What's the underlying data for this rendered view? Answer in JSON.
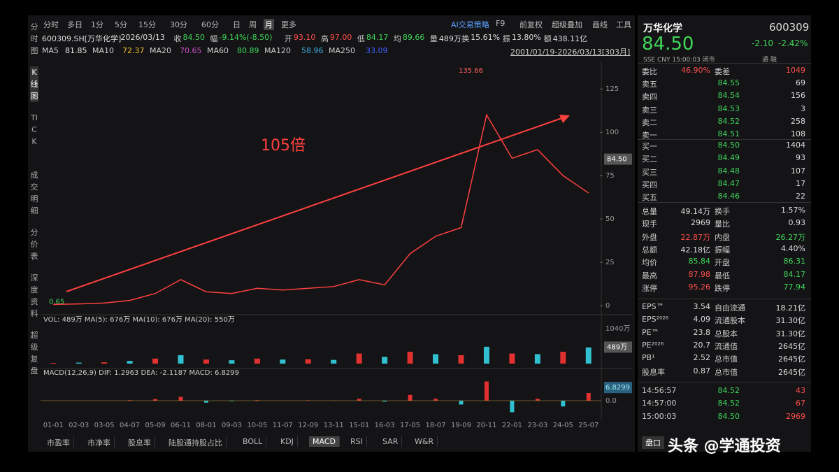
{
  "toolbar": {
    "periods": [
      "分时",
      "多日",
      "1分",
      "5分",
      "15分",
      "30分",
      "60分",
      "日",
      "周",
      "月",
      "更多"
    ],
    "active": "月",
    "tools": [
      "AI交易策略",
      "F9",
      "前复权",
      "超级叠加",
      "画线",
      "工具"
    ]
  },
  "left_tabs": [
    "分时图",
    "K线图",
    "TICK",
    "成交明细",
    "分价表",
    "深度资料",
    "超级复盘"
  ],
  "info_line": [
    {
      "label": "600309.SH[万华化学]",
      "color": "#ddd"
    },
    {
      "label": "2026/03/13",
      "color": "#ddd"
    },
    {
      "label": "收",
      "value": "84.50",
      "color": "#3fd65a"
    },
    {
      "label": "幅",
      "value": "-9.14%(-8.50)",
      "color": "#3fd65a"
    },
    {
      "label": "开",
      "value": "93.10",
      "color": "#ff4d4d"
    },
    {
      "label": "高",
      "value": "97.00",
      "color": "#ff4d4d"
    },
    {
      "label": "低",
      "value": "84.17",
      "color": "#3fd65a"
    },
    {
      "label": "均",
      "value": "89.66",
      "color": "#3fd65a"
    },
    {
      "label": "量",
      "value": "489万",
      "color": "#ddd"
    },
    {
      "label": "换",
      "value": "15.61%",
      "color": "#ddd"
    },
    {
      "label": "振",
      "value": "13.80%",
      "color": "#ddd"
    },
    {
      "label": "额",
      "value": "438.11亿",
      "color": "#ddd"
    }
  ],
  "ma_line": [
    {
      "label": "MA5",
      "value": "81.85",
      "color": "#e8e8e8"
    },
    {
      "label": "MA10",
      "value": "72.37",
      "color": "#f0c030"
    },
    {
      "label": "MA20",
      "value": "70.65",
      "color": "#d050d0"
    },
    {
      "label": "MA60",
      "value": "80.89",
      "color": "#3fd65a"
    },
    {
      "label": "MA120",
      "value": "58.96",
      "color": "#3fb0e0"
    },
    {
      "label": "MA250",
      "value": "33.09",
      "color": "#4060ff"
    }
  ],
  "range_label": "2001/01/19-2026/03/13[303月]",
  "chart_data": {
    "type": "line",
    "color": "#ff4040",
    "categories": [
      "01-01",
      "02-03",
      "03-05",
      "04-07",
      "05-09",
      "06-11",
      "08-01",
      "09-03",
      "10-05",
      "11-07",
      "12-09",
      "13-11",
      "15-01",
      "16-03",
      "17-05",
      "18-07",
      "19-09",
      "20-11",
      "22-01",
      "23-03",
      "24-05",
      "25-07"
    ],
    "values": [
      0.7,
      1,
      1.5,
      3,
      7,
      15,
      8,
      7,
      10,
      9,
      10,
      11,
      15,
      12,
      30,
      40,
      45,
      110,
      85,
      90,
      75,
      65
    ],
    "ylim": [
      -4,
      140
    ],
    "yticks": [
      0,
      25,
      50,
      75,
      100,
      125
    ],
    "high": 135.66,
    "low": 0.65,
    "last": {
      "value": 84.5,
      "label": "84.50"
    },
    "annotation": "105倍",
    "volume": {
      "legend": "VOL: 489万 MA(5): 676万 MA(10): 676万 MA(20): 550万",
      "values": [
        20,
        30,
        40,
        80,
        150,
        250,
        120,
        100,
        150,
        120,
        130,
        110,
        300,
        200,
        350,
        280,
        250,
        500,
        300,
        280,
        350,
        480
      ],
      "ylim": [
        0,
        1140
      ],
      "yticks": [
        {
          "value": 1040,
          "label": "1040万"
        }
      ],
      "current": {
        "value": 489,
        "label": "489万"
      }
    },
    "macd": {
      "legend": "MACD(12,26,9) DIF: 1.2963 DEA: -2.1187 MACD: 6.8299",
      "values": [
        0,
        0,
        0.1,
        0.3,
        0.8,
        2,
        -1,
        -0.3,
        0.3,
        0,
        0.2,
        0.1,
        1,
        -0.5,
        3,
        1,
        -2,
        10,
        -6,
        1,
        -3,
        4
      ],
      "ylim": [
        -8,
        12
      ],
      "yticks": [
        {
          "value": 0,
          "label": "0.0"
        }
      ],
      "current": {
        "value": 6.8299,
        "label": "6.8299"
      }
    }
  },
  "bottom_tabs": [
    "市盈率",
    "市净率",
    "股息率",
    "陆股通持股占比",
    "BOLL",
    "KDJ",
    "MACD",
    "RSI",
    "SAR",
    "W&R"
  ],
  "bottom_active": "MACD",
  "quote": {
    "name": "万华化学",
    "code": "600309",
    "price": "84.50",
    "change": "-2.10",
    "pct": "-2.42%",
    "market": "SSE CNY 15:00:03 闭市",
    "flags": "通 融"
  },
  "order_ratio": {
    "cells": [
      "委比",
      "46.90%",
      "委差",
      "1049"
    ],
    "colors": [
      "#ff4d4d",
      "#ff4d4d"
    ]
  },
  "asks": [
    [
      "卖五",
      "84.55",
      "69"
    ],
    [
      "卖四",
      "84.54",
      "156"
    ],
    [
      "卖三",
      "84.53",
      "3"
    ],
    [
      "卖二",
      "84.52",
      "258"
    ],
    [
      "卖一",
      "84.51",
      "108"
    ]
  ],
  "bids": [
    [
      "买一",
      "84.50",
      "1404"
    ],
    [
      "买二",
      "84.49",
      "93"
    ],
    [
      "买三",
      "84.48",
      "107"
    ],
    [
      "买四",
      "84.47",
      "17"
    ],
    [
      "买五",
      "84.46",
      "22"
    ]
  ],
  "stats": [
    {
      "cells": [
        "总量",
        "49.14万",
        "换手",
        "1.57%"
      ],
      "colors": [
        "#ddd",
        "#ddd"
      ]
    },
    {
      "cells": [
        "现手",
        "2969",
        "量比",
        "0.93"
      ],
      "colors": [
        "#ddd",
        "#ddd"
      ]
    },
    {
      "cells": [
        "外盘",
        "22.87万",
        "内盘",
        "26.27万"
      ],
      "colors": [
        "#ff4d4d",
        "#3fd65a"
      ]
    },
    {
      "cells": [
        "总额",
        "42.18亿",
        "振幅",
        "4.40%"
      ],
      "colors": [
        "#ddd",
        "#ddd"
      ]
    },
    {
      "cells": [
        "均价",
        "85.84",
        "开盘",
        "86.31"
      ],
      "colors": [
        "#3fd65a",
        "#3fd65a"
      ]
    },
    {
      "cells": [
        "最高",
        "87.98",
        "最低",
        "84.17"
      ],
      "colors": [
        "#ff4d4d",
        "#3fd65a"
      ]
    },
    {
      "cells": [
        "涨停",
        "95.26",
        "跌停",
        "77.94"
      ],
      "colors": [
        "#ff4d4d",
        "#3fd65a"
      ]
    }
  ],
  "fundamentals": [
    [
      "EPS™",
      "3.54",
      "自由流通",
      "18.21亿"
    ],
    [
      "EPS²⁰²⁶",
      "4.09",
      "流通股本",
      "31.30亿"
    ],
    [
      "PE™",
      "23.8",
      "总股本",
      "31.30亿"
    ],
    [
      "PE²⁰²⁶",
      "20.7",
      "流通值",
      "2645亿"
    ],
    [
      "PB¹",
      "2.52",
      "总市值",
      "2645亿"
    ],
    [
      "股息率",
      "0.87",
      "总市值",
      "2645亿"
    ]
  ],
  "trades": [
    [
      "14:56:57",
      "84.52",
      "43"
    ],
    [
      "14:57:00",
      "84.52",
      "67"
    ],
    [
      "15:00:03",
      "84.50",
      "2969"
    ]
  ],
  "panel_button": "盘口",
  "watermark": "头条 @学通投资"
}
